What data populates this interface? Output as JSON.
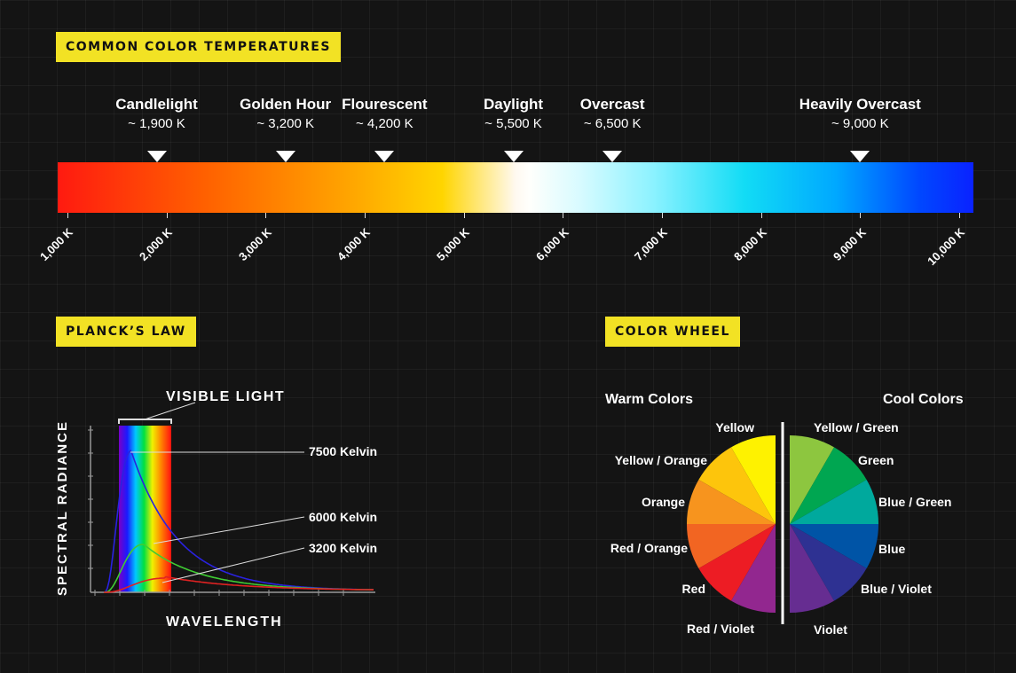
{
  "temperatures": {
    "title": "COMMON COLOR TEMPERATURES",
    "markers": [
      {
        "name": "Candlelight",
        "value": "~ 1,900 K",
        "kelvin": 1900
      },
      {
        "name": "Golden Hour",
        "value": "~ 3,200 K",
        "kelvin": 3200
      },
      {
        "name": "Flourescent",
        "value": "~ 4,200 K",
        "kelvin": 4200
      },
      {
        "name": "Daylight",
        "value": "~ 5,500 K",
        "kelvin": 5500
      },
      {
        "name": "Overcast",
        "value": "~ 6,500 K",
        "kelvin": 6500
      },
      {
        "name": "Heavily Overcast",
        "value": "~ 9,000 K",
        "kelvin": 9000
      }
    ],
    "ticks": [
      {
        "label": "1,000 K",
        "kelvin": 1000
      },
      {
        "label": "2,000 K",
        "kelvin": 2000
      },
      {
        "label": "3,000 K",
        "kelvin": 3000
      },
      {
        "label": "4,000 K",
        "kelvin": 4000
      },
      {
        "label": "5,000 K",
        "kelvin": 5000
      },
      {
        "label": "6,000 K",
        "kelvin": 6000
      },
      {
        "label": "7,000 K",
        "kelvin": 7000
      },
      {
        "label": "8,000 K",
        "kelvin": 8000
      },
      {
        "label": "9,000 K",
        "kelvin": 9000
      },
      {
        "label": "10,000 K",
        "kelvin": 10000
      }
    ]
  },
  "planck": {
    "title": "PLANCK’S LAW",
    "visible_label": "VISIBLE LIGHT",
    "ylabel": "SPECTRAL RADIANCE",
    "xlabel": "WAVELENGTH",
    "curves": [
      {
        "label": "7500 Kelvin",
        "color": "#2a22e0"
      },
      {
        "label": "6000 Kelvin",
        "color": "#3fcc33"
      },
      {
        "label": "3200 Kelvin",
        "color": "#e02222"
      }
    ]
  },
  "wheel": {
    "title": "COLOR WHEEL",
    "warm_title": "Warm Colors",
    "cool_title": "Cool Colors",
    "warm": [
      {
        "label": "Yellow",
        "color": "#fef200"
      },
      {
        "label": "Yellow / Orange",
        "color": "#fdc50c"
      },
      {
        "label": "Orange",
        "color": "#f7941e"
      },
      {
        "label": "Red / Orange",
        "color": "#f26522"
      },
      {
        "label": "Red",
        "color": "#ed1c24"
      },
      {
        "label": "Red / Violet",
        "color": "#92278f"
      }
    ],
    "cool": [
      {
        "label": "Yellow / Green",
        "color": "#8dc63f"
      },
      {
        "label": "Green",
        "color": "#00a651"
      },
      {
        "label": "Blue / Green",
        "color": "#00a99d"
      },
      {
        "label": "Blue",
        "color": "#0054a6"
      },
      {
        "label": "Blue / Violet",
        "color": "#2e3192"
      },
      {
        "label": "Violet",
        "color": "#662d91"
      }
    ]
  }
}
